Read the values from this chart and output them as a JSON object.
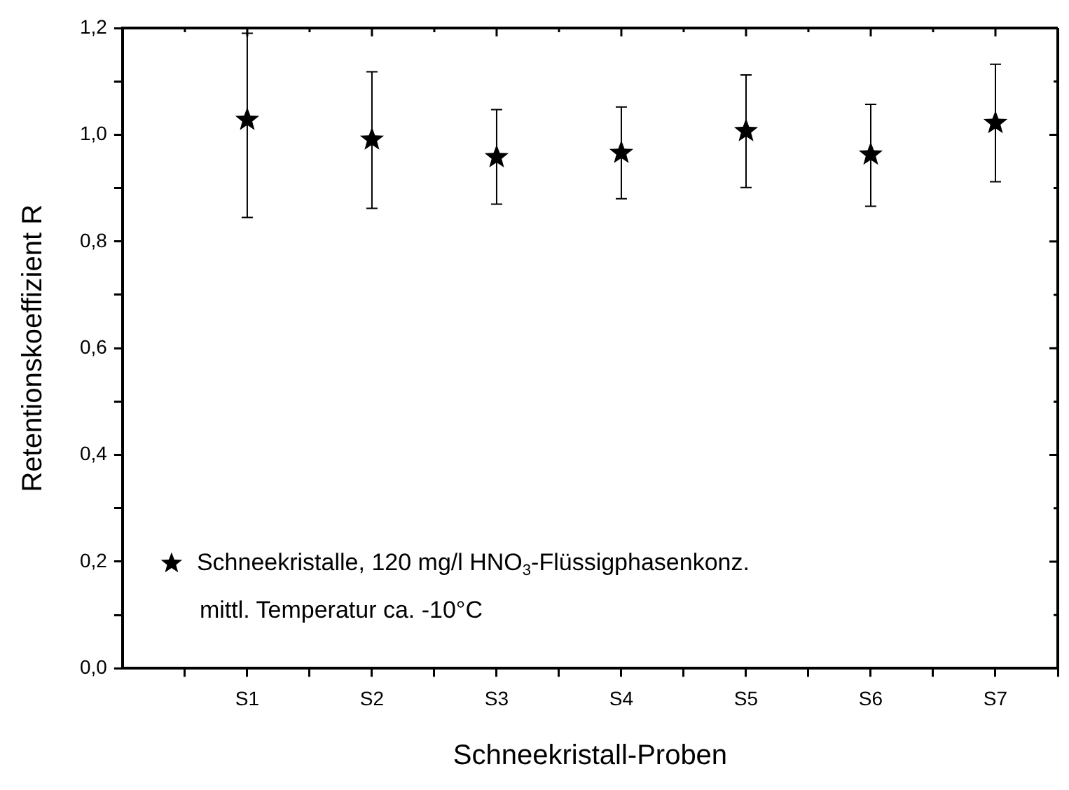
{
  "chart_data": {
    "type": "scatter",
    "xlabel": "Schneekristall-Proben",
    "ylabel": "Retentionskoeffizient R",
    "categories": [
      "S1",
      "S2",
      "S3",
      "S4",
      "S5",
      "S6",
      "S7"
    ],
    "series": [
      {
        "name": "Schneekristalle, 120 mg/l HNO$_{3}$-Flüssigphasenkonz.",
        "color": "#000000",
        "values": [
          1.028,
          0.991,
          0.958,
          0.966,
          1.007,
          0.963,
          1.022
        ],
        "errors": [
          [
            0.845,
            1.19
          ],
          [
            0.862,
            1.118
          ],
          [
            0.87,
            1.047
          ],
          [
            0.88,
            1.052
          ],
          [
            0.901,
            1.112
          ],
          [
            0.866,
            1.057
          ],
          [
            0.912,
            1.132
          ]
        ]
      }
    ],
    "ylim": [
      0,
      1.2
    ],
    "yticks": [
      {
        "value": 0,
        "label": "0,0"
      },
      {
        "value": 0.1,
        "label": null
      },
      {
        "value": 0.2,
        "label": "0,2"
      },
      {
        "value": 0.3,
        "label": null
      },
      {
        "value": 0.4,
        "label": "0,4"
      },
      {
        "value": 0.5,
        "label": null
      },
      {
        "value": 0.6,
        "label": "0,6"
      },
      {
        "value": 0.7,
        "label": null
      },
      {
        "value": 0.8,
        "label": "0,8"
      },
      {
        "value": 0.9,
        "label": null
      },
      {
        "value": 1,
        "label": "1,0"
      },
      {
        "value": 1.1,
        "label": null
      },
      {
        "value": 1.2,
        "label": "1,2"
      }
    ],
    "grid": false,
    "marker": "star",
    "legend": "bottom left",
    "annotations": [
      "mittl. Temperatur ca. -10°C"
    ]
  }
}
